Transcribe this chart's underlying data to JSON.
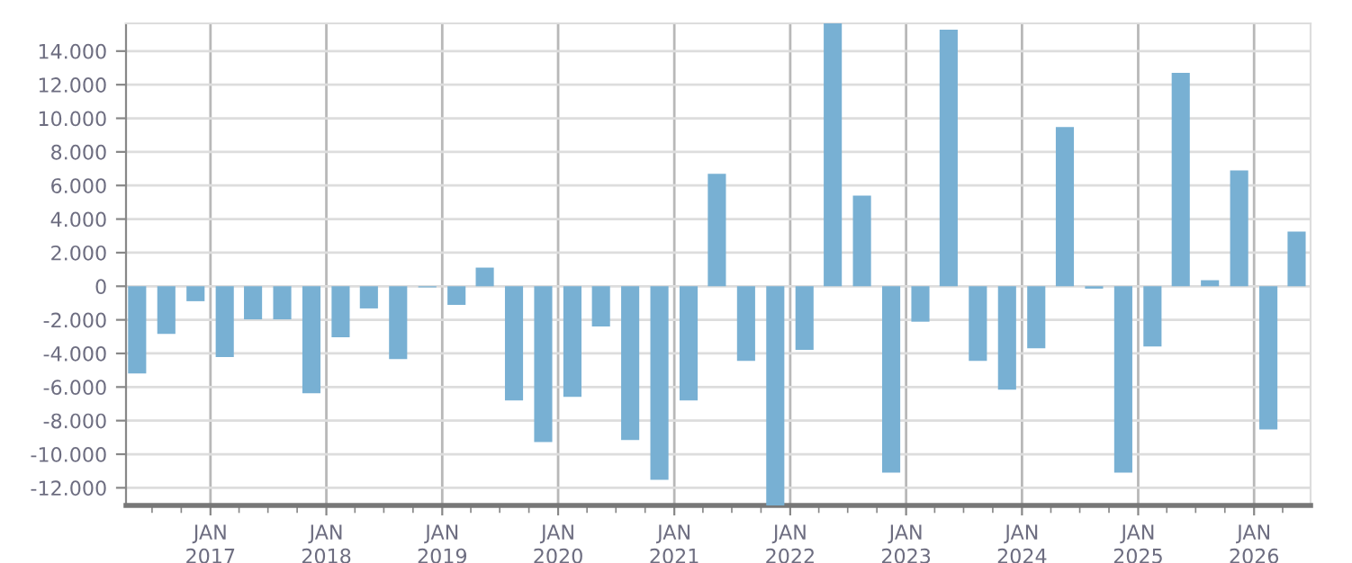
{
  "chart_data": {
    "type": "bar",
    "x": [
      "2016-05-15",
      "2016-08-15",
      "2016-11-15",
      "2017-02-15",
      "2017-05-15",
      "2017-08-15",
      "2017-11-15",
      "2018-02-15",
      "2018-05-15",
      "2018-08-15",
      "2018-11-15",
      "2019-02-15",
      "2019-05-15",
      "2019-08-15",
      "2019-11-15",
      "2020-02-15",
      "2020-05-15",
      "2020-08-15",
      "2020-11-15",
      "2021-02-15",
      "2021-05-15",
      "2021-08-15",
      "2021-11-15",
      "2022-02-15",
      "2022-05-15",
      "2022-08-15",
      "2022-11-15",
      "2023-02-15",
      "2023-05-15",
      "2023-08-15",
      "2023-11-15",
      "2024-02-15",
      "2024-05-15",
      "2024-08-15",
      "2024-11-15",
      "2025-02-15",
      "2025-05-15",
      "2025-08-15",
      "2025-11-15",
      "2026-02-15",
      "2026-05-15"
    ],
    "values": [
      -5190,
      -2830,
      -890,
      -4220,
      -1970,
      -1970,
      -6370,
      -3040,
      -1320,
      -4330,
      -70,
      -1110,
      1110,
      -6800,
      -9270,
      -6580,
      -2400,
      -9160,
      -11520,
      -6800,
      6690,
      -4440,
      -13050,
      -3790,
      15650,
      5400,
      -11090,
      -2110,
      15280,
      -4440,
      -6150,
      -3690,
      9480,
      -140,
      -11090,
      -3580,
      12700,
      360,
      6900,
      -8520,
      3260
    ],
    "color": "#78b0d3",
    "ylim": [
      -13050,
      15650
    ],
    "yticks": [
      {
        "value": -12000,
        "label": "-12.000"
      },
      {
        "value": -10000,
        "label": "-10.000"
      },
      {
        "value": -8000,
        "label": "-8.000"
      },
      {
        "value": -6000,
        "label": "-6.000"
      },
      {
        "value": -4000,
        "label": "-4.000"
      },
      {
        "value": -2000,
        "label": "-2.000"
      },
      0,
      {
        "value": 2000,
        "label": "2.000"
      },
      {
        "value": 4000,
        "label": "4.000"
      },
      {
        "value": 6000,
        "label": "6.000"
      },
      {
        "value": 8000,
        "label": "8.000"
      },
      {
        "value": 10000,
        "label": "10.000"
      },
      {
        "value": 12000,
        "label": "12.000"
      },
      {
        "value": 14000,
        "label": "14.000"
      }
    ],
    "xlim": [
      "2016-04-10",
      "2026-06-28"
    ],
    "xticks": [
      {
        "value": "2016-07-01",
        "label": null
      },
      {
        "value": "2016-10-01",
        "label": null
      },
      {
        "value": "2017-01-01",
        "label": "JAN\n2017"
      },
      {
        "value": "2017-04-01",
        "label": null
      },
      {
        "value": "2017-07-01",
        "label": null
      },
      {
        "value": "2017-10-01",
        "label": null
      },
      {
        "value": "2018-01-01",
        "label": "JAN\n2018"
      },
      {
        "value": "2018-04-01",
        "label": null
      },
      {
        "value": "2018-07-01",
        "label": null
      },
      {
        "value": "2018-10-01",
        "label": null
      },
      {
        "value": "2019-01-01",
        "label": "JAN\n2019"
      },
      {
        "value": "2019-04-01",
        "label": null
      },
      {
        "value": "2019-07-01",
        "label": null
      },
      {
        "value": "2019-10-01",
        "label": null
      },
      {
        "value": "2020-01-01",
        "label": "JAN\n2020"
      },
      {
        "value": "2020-04-01",
        "label": null
      },
      {
        "value": "2020-07-01",
        "label": null
      },
      {
        "value": "2020-10-01",
        "label": null
      },
      {
        "value": "2021-01-01",
        "label": "JAN\n2021"
      },
      {
        "value": "2021-04-01",
        "label": null
      },
      {
        "value": "2021-07-01",
        "label": null
      },
      {
        "value": "2021-10-01",
        "label": null
      },
      {
        "value": "2022-01-01",
        "label": "JAN\n2022"
      },
      {
        "value": "2022-04-01",
        "label": null
      },
      {
        "value": "2022-07-01",
        "label": null
      },
      {
        "value": "2022-10-01",
        "label": null
      },
      {
        "value": "2023-01-01",
        "label": "JAN\n2023"
      },
      {
        "value": "2023-04-01",
        "label": null
      },
      {
        "value": "2023-07-01",
        "label": null
      },
      {
        "value": "2023-10-01",
        "label": null
      },
      {
        "value": "2024-01-01",
        "label": "JAN\n2024"
      },
      {
        "value": "2024-04-01",
        "label": null
      },
      {
        "value": "2024-07-01",
        "label": null
      },
      {
        "value": "2024-10-01",
        "label": null
      },
      {
        "value": "2025-01-01",
        "label": "JAN\n2025"
      },
      {
        "value": "2025-04-01",
        "label": null
      },
      {
        "value": "2025-07-01",
        "label": null
      },
      {
        "value": "2025-10-01",
        "label": null
      },
      {
        "value": "2026-01-01",
        "label": "JAN\n2026"
      },
      {
        "value": "2026-04-01",
        "label": null
      }
    ],
    "grid": true
  }
}
